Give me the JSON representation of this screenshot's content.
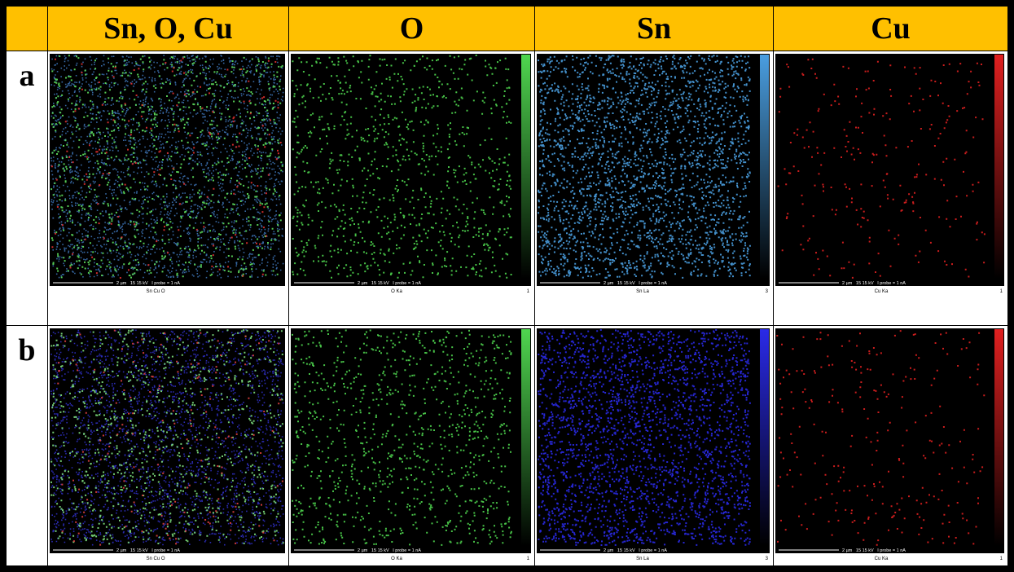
{
  "header": {
    "columns": [
      "Sn, O, Cu",
      "O",
      "Sn",
      "Cu"
    ]
  },
  "rows": [
    {
      "label": "a",
      "panels": [
        {
          "colors": [
            "#3c72b4",
            "#5ee05e",
            "#e03030"
          ],
          "scale_bar": "2 µm   15 15 kV   I probe = 1 nA",
          "map_label": "Sn Cu O"
        },
        {
          "colors": [
            "#4fd64f"
          ],
          "scale_bar": "2 µm   15 15 kV   I probe = 1 nA",
          "map_label": "O Ka",
          "colorbar_max": "1"
        },
        {
          "colors": [
            "#4a9ee0"
          ],
          "scale_bar": "2 µm   15 15 kV   I probe = 1 nA",
          "map_label": "Sn La",
          "colorbar_max": "3"
        },
        {
          "colors": [
            "#e02020"
          ],
          "scale_bar": "2 µm   15 15 kV   I probe = 1 nA",
          "map_label": "Cu Ka",
          "colorbar_max": "1"
        }
      ]
    },
    {
      "label": "b",
      "panels": [
        {
          "colors": [
            "#2f2fc4",
            "#7ee07e",
            "#e04040"
          ],
          "scale_bar": "2 µm   15 15 kV   I probe = 1 nA",
          "map_label": "Sn Cu O"
        },
        {
          "colors": [
            "#4fd64f"
          ],
          "scale_bar": "2 µm   15 15 kV   I probe = 1 nA",
          "map_label": "O Ka",
          "colorbar_max": "1"
        },
        {
          "colors": [
            "#2a2ae8"
          ],
          "scale_bar": "2 µm   15 15 kV   I probe = 1 nA",
          "map_label": "Sn La",
          "colorbar_max": "3"
        },
        {
          "colors": [
            "#e02020"
          ],
          "scale_bar": "2 µm   15 15 kV   I probe = 1 nA",
          "map_label": "Cu Ka",
          "colorbar_max": "1"
        }
      ]
    }
  ]
}
